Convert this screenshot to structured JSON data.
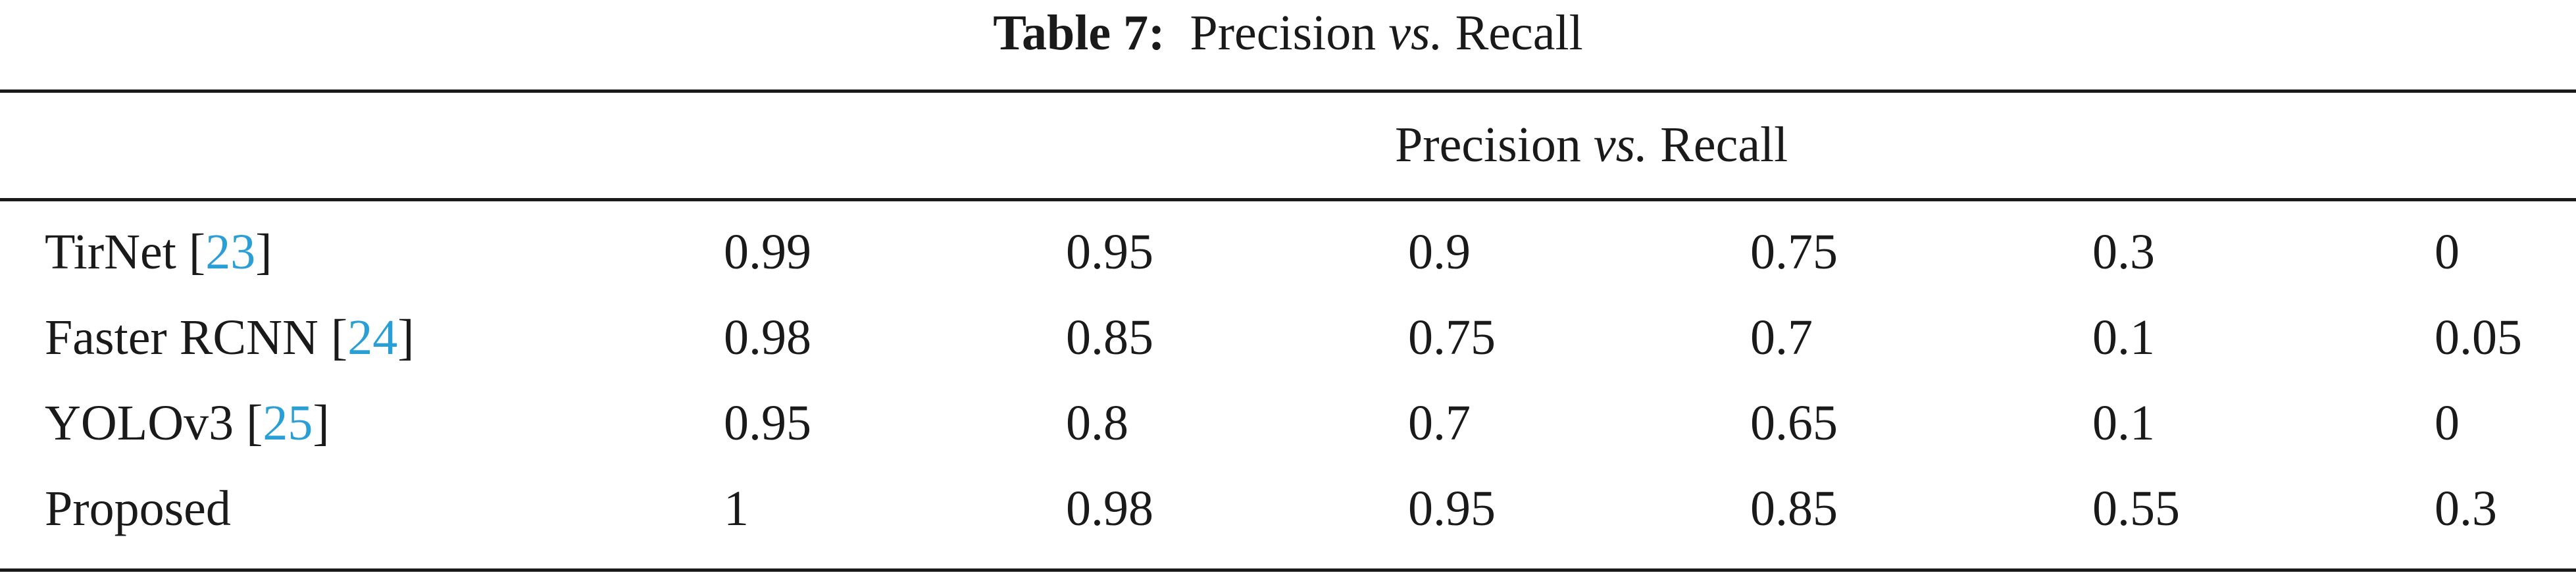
{
  "caption": {
    "label": "Table 7:",
    "title_pre": "Precision",
    "title_vs": "vs.",
    "title_post": "Recall"
  },
  "header": {
    "span_pre": "Precision",
    "span_vs": "vs.",
    "span_post": "Recall"
  },
  "rows": [
    {
      "method": "TirNet [",
      "cite": "23",
      "close": "]",
      "values": [
        "0.99",
        "0.95",
        "0.9",
        "0.75",
        "0.3",
        "0"
      ]
    },
    {
      "method": "Faster RCNN [",
      "cite": "24",
      "close": "]",
      "values": [
        "0.98",
        "0.85",
        "0.75",
        "0.7",
        "0.1",
        "0.05"
      ]
    },
    {
      "method": "YOLOv3 [",
      "cite": "25",
      "close": "]",
      "values": [
        "0.95",
        "0.8",
        "0.7",
        "0.65",
        "0.1",
        "0"
      ]
    },
    {
      "method": "Proposed",
      "cite": "",
      "close": "",
      "values": [
        "1",
        "0.98",
        "0.95",
        "0.85",
        "0.55",
        "0.3"
      ]
    }
  ],
  "colors": {
    "text": "#1a1a1a",
    "citation": "#2a9fd6",
    "background": "#ffffff"
  }
}
